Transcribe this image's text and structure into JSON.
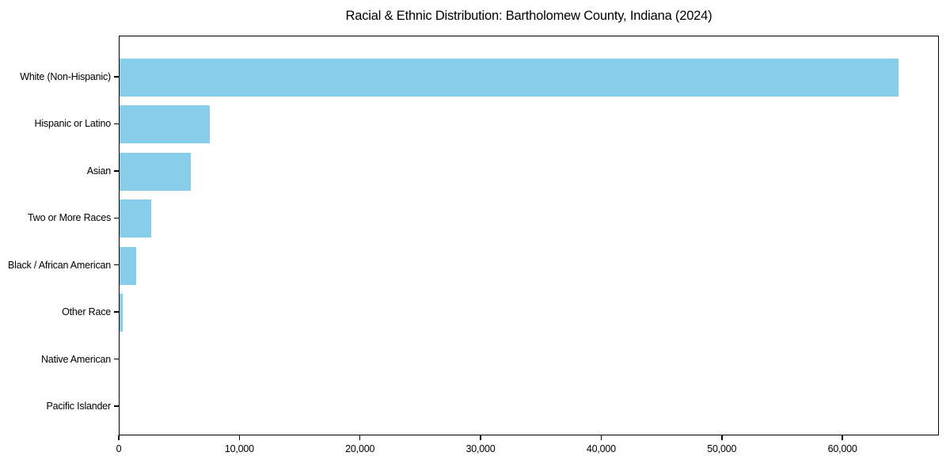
{
  "chart_data": {
    "type": "bar",
    "orientation": "horizontal",
    "title": "Racial & Ethnic Distribution: Bartholomew County, Indiana (2024)",
    "categories": [
      "White (Non-Hispanic)",
      "Hispanic or Latino",
      "Asian",
      "Two or More Races",
      "Black / African American",
      "Other Race",
      "Native American",
      "Pacific Islander"
    ],
    "values": [
      64700,
      7600,
      6000,
      2700,
      1450,
      350,
      100,
      30
    ],
    "xlabel": "",
    "ylabel": "",
    "xlim": [
      0,
      68000
    ],
    "xticks": [
      0,
      10000,
      20000,
      30000,
      40000,
      50000,
      60000
    ],
    "xtick_labels": [
      "0",
      "10,000",
      "20,000",
      "30,000",
      "40,000",
      "50,000",
      "60,000"
    ],
    "grid": false,
    "legend": null,
    "colors": {
      "bar": "#87CEEB",
      "axis": "#000000",
      "background": "#ffffff",
      "text": "#000000"
    }
  }
}
